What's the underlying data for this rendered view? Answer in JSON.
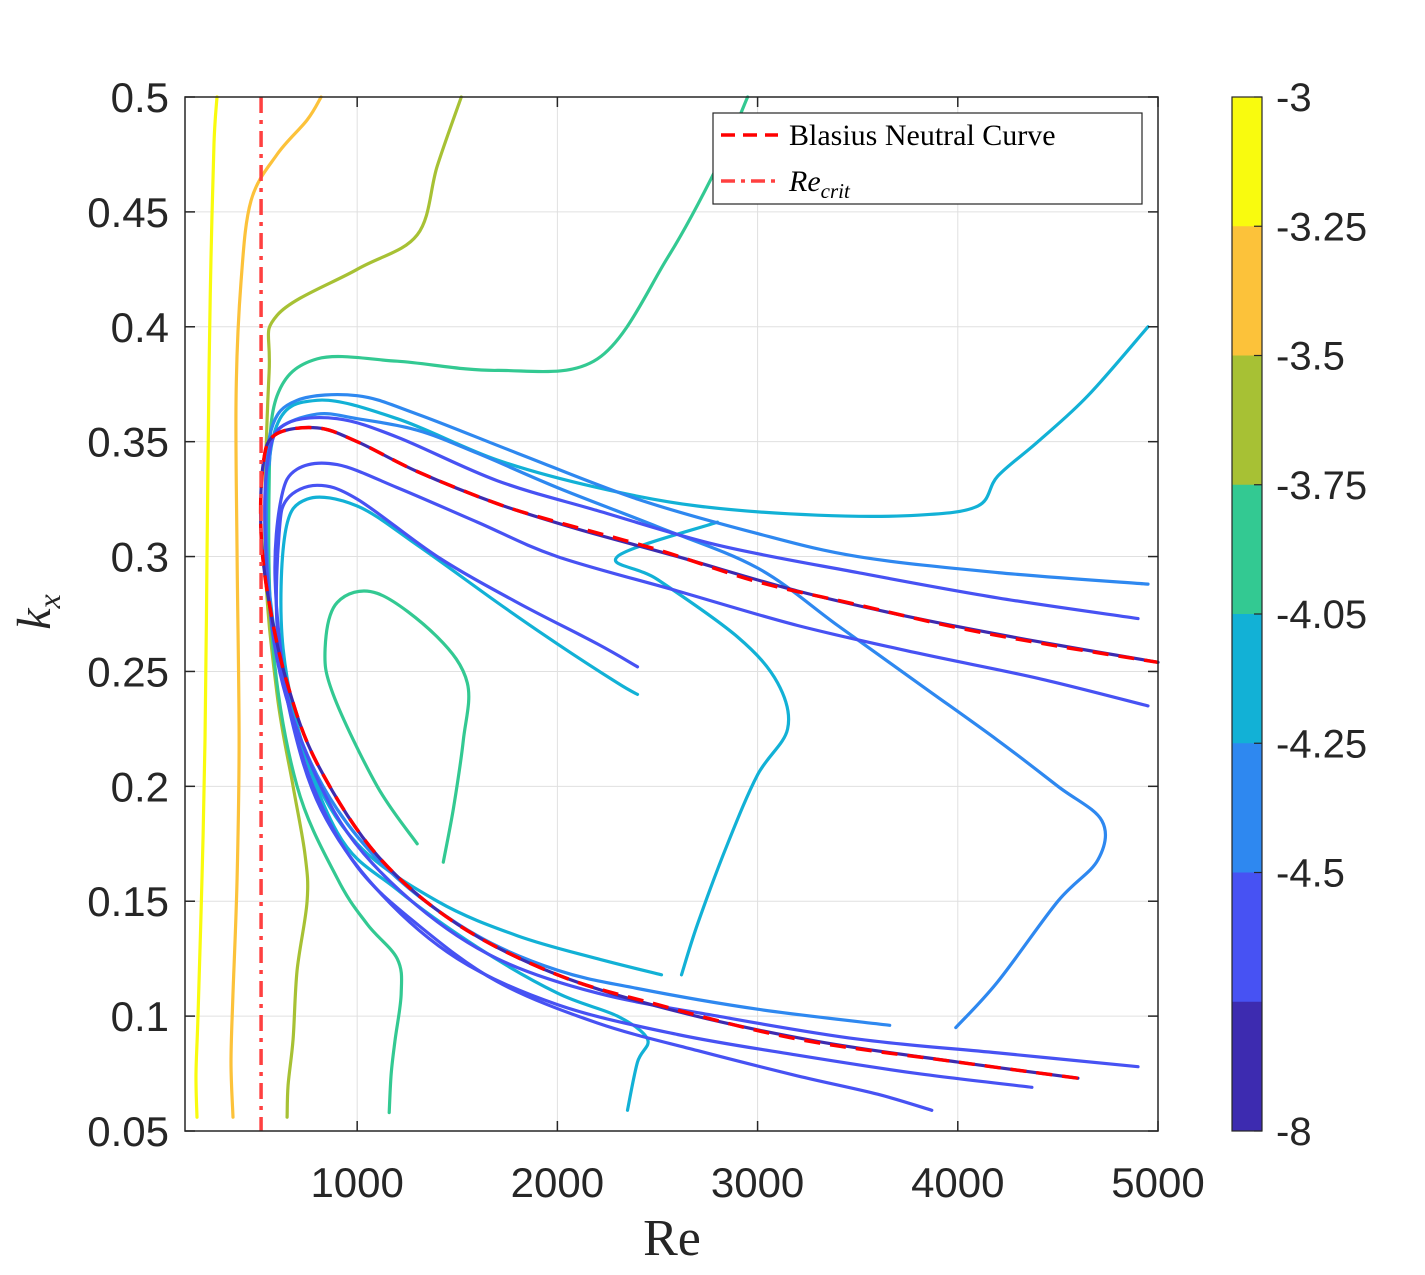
{
  "chart_data": {
    "type": "contour",
    "xlabel": "Re",
    "ylabel_base": "k",
    "ylabel_sub": "x",
    "xlim": [
      140,
      5000
    ],
    "ylim": [
      0.05,
      0.5
    ],
    "xticks": [
      1000,
      2000,
      3000,
      4000,
      5000
    ],
    "xtick_labels": [
      "1000",
      "2000",
      "3000",
      "4000",
      "5000"
    ],
    "yticks": [
      0.05,
      0.1,
      0.15,
      0.2,
      0.25,
      0.3,
      0.35,
      0.4,
      0.45,
      0.5
    ],
    "ytick_labels": [
      "0.05",
      "0.1",
      "0.15",
      "0.2",
      "0.25",
      "0.3",
      "0.35",
      "0.4",
      "0.45",
      "0.5"
    ],
    "grid": true,
    "legend": {
      "position": "top-right",
      "entries": [
        {
          "label": "Blasius Neutral Curve",
          "style": "dashed",
          "color": "#ff0000"
        },
        {
          "label_base": "Re",
          "label_sub": "crit",
          "style": "dashdot",
          "color": "#ff4040"
        }
      ]
    },
    "colorbar": {
      "levels": [
        "-3",
        "-3.25",
        "-3.5",
        "-3.75",
        "-4.05",
        "-4.25",
        "-4.5",
        "-8"
      ],
      "colors": [
        "#f9fb0e",
        "#fcc23a",
        "#a7c134",
        "#33c992",
        "#12b1d6",
        "#2e88f0",
        "#4752f3",
        "#3d2bb0"
      ]
    },
    "re_crit": 520,
    "neutral_curve": [
      [
        4600,
        0.073
      ],
      [
        4000,
        0.08
      ],
      [
        3200,
        0.09
      ],
      [
        2500,
        0.105
      ],
      [
        2000,
        0.118
      ],
      [
        1500,
        0.14
      ],
      [
        1100,
        0.17
      ],
      [
        800,
        0.21
      ],
      [
        650,
        0.245
      ],
      [
        560,
        0.28
      ],
      [
        520,
        0.31
      ],
      [
        530,
        0.34
      ],
      [
        590,
        0.353
      ],
      [
        800,
        0.356
      ],
      [
        1000,
        0.35
      ],
      [
        1300,
        0.337
      ],
      [
        1700,
        0.323
      ],
      [
        2000,
        0.315
      ],
      [
        2500,
        0.303
      ],
      [
        3000,
        0.289
      ],
      [
        3500,
        0.279
      ],
      [
        4000,
        0.269
      ],
      [
        4500,
        0.261
      ],
      [
        5000,
        0.254
      ]
    ],
    "contours": [
      {
        "level": "-3",
        "points": [
          [
            200,
            0.056
          ],
          [
            195,
            0.075
          ],
          [
            205,
            0.1
          ],
          [
            225,
            0.16
          ],
          [
            240,
            0.22
          ],
          [
            250,
            0.3
          ],
          [
            260,
            0.38
          ],
          [
            270,
            0.43
          ],
          [
            285,
            0.48
          ],
          [
            300,
            0.5
          ]
        ]
      },
      {
        "level": "-3.25",
        "points": [
          [
            380,
            0.056
          ],
          [
            370,
            0.08
          ],
          [
            380,
            0.11
          ],
          [
            400,
            0.16
          ],
          [
            410,
            0.22
          ],
          [
            400,
            0.3
          ],
          [
            395,
            0.37
          ],
          [
            420,
            0.42
          ],
          [
            470,
            0.455
          ],
          [
            600,
            0.475
          ],
          [
            750,
            0.49
          ],
          [
            820,
            0.5
          ]
        ]
      },
      {
        "level": "-3.5",
        "points": [
          [
            650,
            0.056
          ],
          [
            655,
            0.07
          ],
          [
            680,
            0.09
          ],
          [
            700,
            0.12
          ],
          [
            750,
            0.15
          ],
          [
            740,
            0.17
          ],
          [
            680,
            0.2
          ],
          [
            600,
            0.24
          ],
          [
            540,
            0.3
          ],
          [
            560,
            0.38
          ],
          [
            600,
            0.405
          ],
          [
            1000,
            0.425
          ],
          [
            1300,
            0.44
          ],
          [
            1400,
            0.47
          ],
          [
            1520,
            0.5
          ]
        ]
      },
      {
        "level": "-3.75",
        "points": [
          [
            1160,
            0.058
          ],
          [
            1170,
            0.075
          ],
          [
            1190,
            0.09
          ],
          [
            1220,
            0.11
          ],
          [
            1200,
            0.125
          ],
          [
            1050,
            0.14
          ],
          [
            900,
            0.16
          ],
          [
            700,
            0.2
          ],
          [
            580,
            0.26
          ],
          [
            560,
            0.33
          ],
          [
            600,
            0.37
          ],
          [
            800,
            0.386
          ],
          [
            1200,
            0.385
          ],
          [
            1700,
            0.381
          ],
          [
            2200,
            0.386
          ],
          [
            2550,
            0.43
          ],
          [
            2800,
            0.47
          ],
          [
            2950,
            0.5
          ]
        ]
      },
      {
        "level": "-3.75",
        "points": [
          [
            1300,
            0.175
          ],
          [
            1100,
            0.2
          ],
          [
            880,
            0.24
          ],
          [
            840,
            0.26
          ],
          [
            900,
            0.28
          ],
          [
            1100,
            0.284
          ],
          [
            1400,
            0.265
          ],
          [
            1550,
            0.245
          ],
          [
            1530,
            0.22
          ],
          [
            1480,
            0.19
          ],
          [
            1430,
            0.167
          ]
        ]
      },
      {
        "level": "-4.05",
        "points": [
          [
            2520,
            0.118
          ],
          [
            2200,
            0.125
          ],
          [
            1800,
            0.135
          ],
          [
            1400,
            0.15
          ],
          [
            1000,
            0.175
          ],
          [
            760,
            0.21
          ],
          [
            630,
            0.26
          ],
          [
            640,
            0.31
          ],
          [
            750,
            0.325
          ],
          [
            1000,
            0.322
          ],
          [
            1300,
            0.305
          ],
          [
            1700,
            0.28
          ],
          [
            2000,
            0.262
          ],
          [
            2300,
            0.245
          ],
          [
            2400,
            0.24
          ]
        ]
      },
      {
        "level": "-4.05",
        "points": [
          [
            2620,
            0.118
          ],
          [
            2700,
            0.14
          ],
          [
            2850,
            0.175
          ],
          [
            3000,
            0.205
          ],
          [
            3150,
            0.225
          ],
          [
            3100,
            0.245
          ],
          [
            2900,
            0.265
          ],
          [
            2500,
            0.29
          ],
          [
            2300,
            0.3
          ],
          [
            2800,
            0.315
          ]
        ]
      },
      {
        "level": "-4.05",
        "points": [
          [
            2350,
            0.059
          ],
          [
            2400,
            0.08
          ],
          [
            2450,
            0.09
          ],
          [
            2300,
            0.1
          ],
          [
            2000,
            0.11
          ],
          [
            1600,
            0.13
          ],
          [
            1200,
            0.155
          ],
          [
            900,
            0.18
          ],
          [
            650,
            0.24
          ],
          [
            550,
            0.3
          ],
          [
            590,
            0.355
          ],
          [
            800,
            0.368
          ],
          [
            1200,
            0.36
          ],
          [
            1700,
            0.342
          ],
          [
            2200,
            0.33
          ],
          [
            2700,
            0.322
          ],
          [
            3300,
            0.318
          ],
          [
            3800,
            0.318
          ],
          [
            4100,
            0.322
          ],
          [
            4200,
            0.335
          ],
          [
            4400,
            0.35
          ],
          [
            4650,
            0.37
          ],
          [
            4950,
            0.4
          ]
        ]
      },
      {
        "level": "-4.25",
        "points": [
          [
            3990,
            0.095
          ],
          [
            4200,
            0.115
          ],
          [
            4500,
            0.15
          ],
          [
            4700,
            0.168
          ],
          [
            4720,
            0.185
          ],
          [
            4500,
            0.2
          ],
          [
            4200,
            0.22
          ],
          [
            3800,
            0.245
          ],
          [
            3400,
            0.27
          ],
          [
            3000,
            0.295
          ],
          [
            2500,
            0.313
          ],
          [
            2000,
            0.33
          ],
          [
            1600,
            0.345
          ],
          [
            1300,
            0.355
          ],
          [
            1000,
            0.36
          ],
          [
            800,
            0.362
          ],
          [
            600,
            0.355
          ],
          [
            560,
            0.34
          ]
        ]
      },
      {
        "level": "-4.25",
        "points": [
          [
            3660,
            0.096
          ],
          [
            3000,
            0.103
          ],
          [
            2400,
            0.112
          ],
          [
            2000,
            0.12
          ],
          [
            1600,
            0.135
          ],
          [
            1200,
            0.16
          ],
          [
            900,
            0.19
          ],
          [
            700,
            0.225
          ],
          [
            580,
            0.27
          ],
          [
            545,
            0.32
          ],
          [
            570,
            0.355
          ],
          [
            700,
            0.368
          ],
          [
            1000,
            0.37
          ],
          [
            1300,
            0.362
          ],
          [
            1800,
            0.345
          ],
          [
            2400,
            0.325
          ],
          [
            3000,
            0.31
          ],
          [
            3500,
            0.3
          ],
          [
            4200,
            0.293
          ],
          [
            4950,
            0.288
          ]
        ]
      },
      {
        "level": "-4.5",
        "points": [
          [
            4900,
            0.078
          ],
          [
            4200,
            0.084
          ],
          [
            3500,
            0.09
          ],
          [
            2800,
            0.1
          ],
          [
            2200,
            0.11
          ],
          [
            1700,
            0.125
          ],
          [
            1300,
            0.148
          ],
          [
            950,
            0.18
          ],
          [
            720,
            0.22
          ],
          [
            590,
            0.26
          ],
          [
            540,
            0.31
          ],
          [
            560,
            0.345
          ],
          [
            650,
            0.358
          ],
          [
            900,
            0.36
          ],
          [
            1200,
            0.352
          ],
          [
            1700,
            0.333
          ],
          [
            2200,
            0.32
          ],
          [
            2800,
            0.305
          ],
          [
            3500,
            0.293
          ],
          [
            4200,
            0.282
          ],
          [
            4900,
            0.273
          ]
        ]
      },
      {
        "level": "-4.5",
        "points": [
          [
            3870,
            0.059
          ],
          [
            3600,
            0.066
          ],
          [
            3200,
            0.074
          ],
          [
            2700,
            0.085
          ],
          [
            2200,
            0.097
          ],
          [
            1700,
            0.115
          ],
          [
            1300,
            0.14
          ],
          [
            1000,
            0.165
          ],
          [
            780,
            0.2
          ],
          [
            650,
            0.24
          ],
          [
            590,
            0.29
          ],
          [
            620,
            0.325
          ],
          [
            700,
            0.338
          ],
          [
            900,
            0.34
          ],
          [
            1200,
            0.33
          ],
          [
            1600,
            0.315
          ],
          [
            2000,
            0.3
          ],
          [
            2600,
            0.285
          ],
          [
            3200,
            0.27
          ],
          [
            3800,
            0.258
          ],
          [
            4400,
            0.247
          ],
          [
            4950,
            0.235
          ]
        ]
      },
      {
        "level": "-4.5",
        "points": [
          [
            4370,
            0.069
          ],
          [
            3800,
            0.075
          ],
          [
            3200,
            0.083
          ],
          [
            2600,
            0.092
          ],
          [
            2000,
            0.105
          ],
          [
            1500,
            0.125
          ],
          [
            1100,
            0.155
          ],
          [
            820,
            0.19
          ],
          [
            670,
            0.23
          ],
          [
            600,
            0.27
          ],
          [
            610,
            0.31
          ],
          [
            650,
            0.325
          ],
          [
            800,
            0.331
          ],
          [
            1000,
            0.325
          ],
          [
            1400,
            0.3
          ],
          [
            1800,
            0.28
          ],
          [
            2200,
            0.262
          ],
          [
            2400,
            0.252
          ]
        ]
      },
      {
        "level": "-8",
        "points": [
          [
            4600,
            0.073
          ],
          [
            4000,
            0.08
          ],
          [
            3300,
            0.089
          ],
          [
            2600,
            0.102
          ],
          [
            2000,
            0.118
          ],
          [
            1500,
            0.14
          ],
          [
            1100,
            0.17
          ],
          [
            800,
            0.21
          ],
          [
            650,
            0.245
          ],
          [
            560,
            0.28
          ],
          [
            520,
            0.31
          ],
          [
            530,
            0.34
          ],
          [
            590,
            0.353
          ],
          [
            800,
            0.356
          ],
          [
            1000,
            0.35
          ],
          [
            1300,
            0.337
          ],
          [
            1700,
            0.323
          ],
          [
            2100,
            0.312
          ],
          [
            2600,
            0.3
          ],
          [
            3200,
            0.285
          ],
          [
            3800,
            0.273
          ],
          [
            4400,
            0.263
          ],
          [
            5000,
            0.254
          ]
        ]
      }
    ]
  }
}
